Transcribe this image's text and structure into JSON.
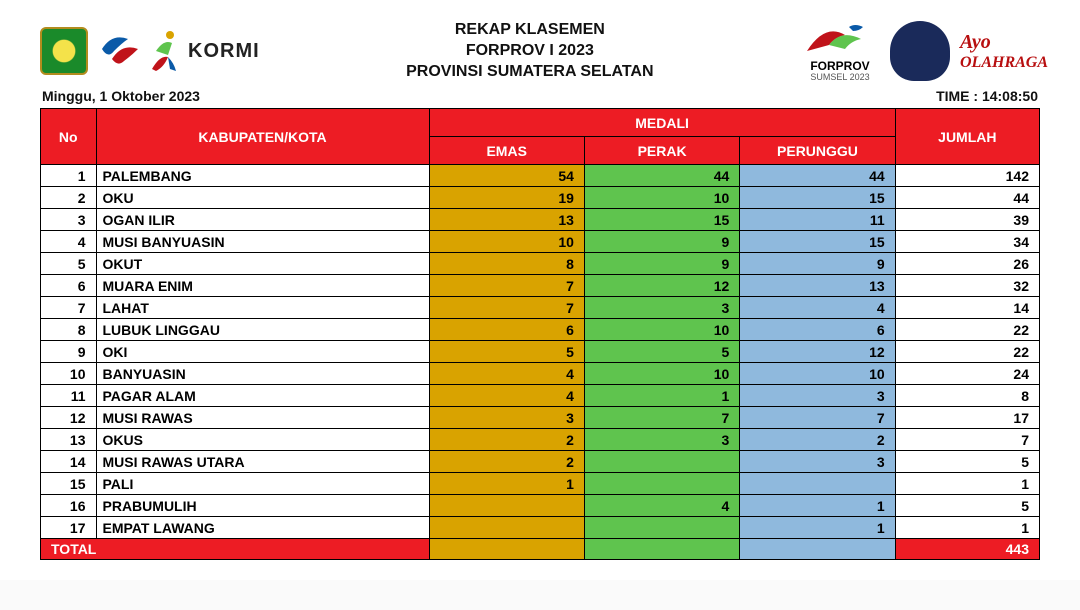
{
  "header": {
    "title1": "REKAP KLASEMEN",
    "title2": "FORPROV I 2023",
    "title3": "PROVINSI SUMATERA SELATAN",
    "kormi": "KORMI",
    "forprov_label": "FORPROV",
    "forprov_sub": "SUMSEL 2023",
    "ayo_top": "Ayo",
    "ayo_bot": "OLAHRAGA"
  },
  "subhead": {
    "date": "Minggu, 1 Oktober 2023",
    "time": "TIME :  14:08:50"
  },
  "table": {
    "columns": {
      "no": "No",
      "kab": "KABUPATEN/KOTA",
      "medali": "MEDALI",
      "emas": "EMAS",
      "perak": "PERAK",
      "perunggu": "PERUNGGU",
      "jumlah": "JUMLAH"
    },
    "colors": {
      "header_bg": "#ed1c24",
      "header_fg": "#ffffff",
      "emas_bg": "#d9a300",
      "perak_bg": "#5fc44e",
      "perunggu_bg": "#8fb9dd",
      "border": "#000000"
    },
    "rows": [
      {
        "no": 1,
        "name": "PALEMBANG",
        "emas": "54",
        "perak": "44",
        "perunggu": "44",
        "jumlah": "142"
      },
      {
        "no": 2,
        "name": "OKU",
        "emas": "19",
        "perak": "10",
        "perunggu": "15",
        "jumlah": "44"
      },
      {
        "no": 3,
        "name": "OGAN ILIR",
        "emas": "13",
        "perak": "15",
        "perunggu": "11",
        "jumlah": "39"
      },
      {
        "no": 4,
        "name": "MUSI BANYUASIN",
        "emas": "10",
        "perak": "9",
        "perunggu": "15",
        "jumlah": "34"
      },
      {
        "no": 5,
        "name": "OKUT",
        "emas": "8",
        "perak": "9",
        "perunggu": "9",
        "jumlah": "26"
      },
      {
        "no": 6,
        "name": "MUARA ENIM",
        "emas": "7",
        "perak": "12",
        "perunggu": "13",
        "jumlah": "32"
      },
      {
        "no": 7,
        "name": "LAHAT",
        "emas": "7",
        "perak": "3",
        "perunggu": "4",
        "jumlah": "14"
      },
      {
        "no": 8,
        "name": "LUBUK LINGGAU",
        "emas": "6",
        "perak": "10",
        "perunggu": "6",
        "jumlah": "22"
      },
      {
        "no": 9,
        "name": "OKI",
        "emas": "5",
        "perak": "5",
        "perunggu": "12",
        "jumlah": "22"
      },
      {
        "no": 10,
        "name": "BANYUASIN",
        "emas": "4",
        "perak": "10",
        "perunggu": "10",
        "jumlah": "24"
      },
      {
        "no": 11,
        "name": "PAGAR ALAM",
        "emas": "4",
        "perak": "1",
        "perunggu": "3",
        "jumlah": "8"
      },
      {
        "no": 12,
        "name": "MUSI RAWAS",
        "emas": "3",
        "perak": "7",
        "perunggu": "7",
        "jumlah": "17"
      },
      {
        "no": 13,
        "name": "OKUS",
        "emas": "2",
        "perak": "3",
        "perunggu": "2",
        "jumlah": "7"
      },
      {
        "no": 14,
        "name": "MUSI RAWAS UTARA",
        "emas": "2",
        "perak": "",
        "perunggu": "3",
        "jumlah": "5"
      },
      {
        "no": 15,
        "name": "PALI",
        "emas": "1",
        "perak": "",
        "perunggu": "",
        "jumlah": "1"
      },
      {
        "no": 16,
        "name": "PRABUMULIH",
        "emas": "",
        "perak": "4",
        "perunggu": "1",
        "jumlah": "5"
      },
      {
        "no": 17,
        "name": "EMPAT LAWANG",
        "emas": "",
        "perak": "",
        "perunggu": "1",
        "jumlah": "1"
      }
    ],
    "total": {
      "label": "TOTAL",
      "jumlah": "443"
    }
  }
}
